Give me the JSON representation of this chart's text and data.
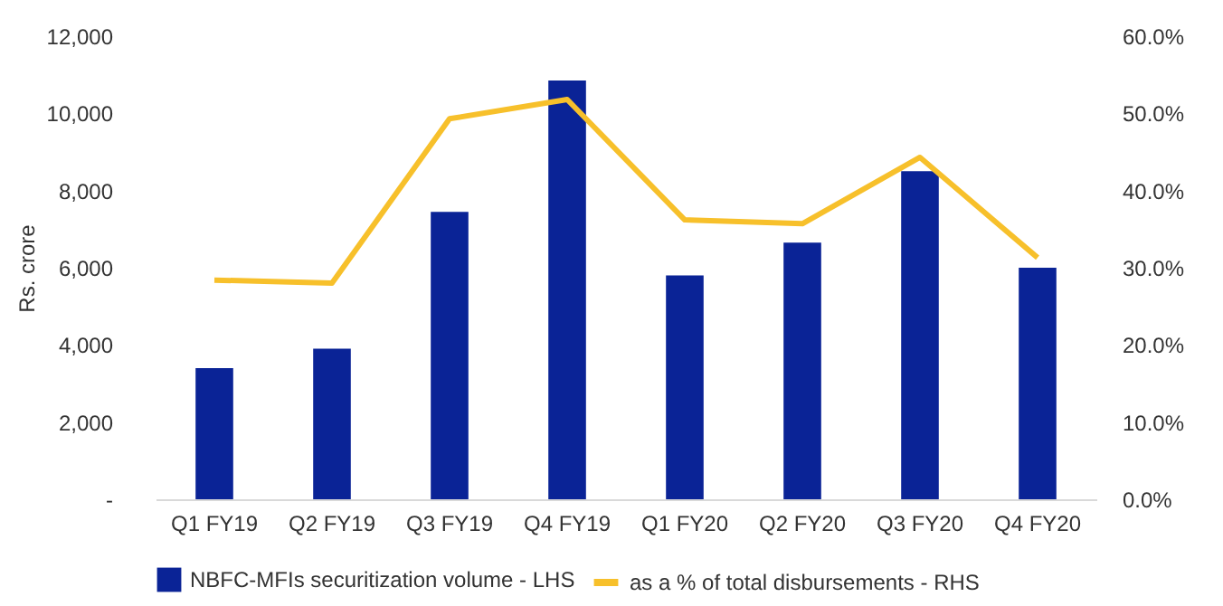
{
  "chart_data": {
    "type": "bar",
    "ylabel": "Rs. crore",
    "categories": [
      "Q1 FY19",
      "Q2 FY19",
      "Q3 FY19",
      "Q4 FY19",
      "Q1 FY20",
      "Q2 FY20",
      "Q3 FY20",
      "Q4 FY20"
    ],
    "series": [
      {
        "name": "NBFC-MFIs securitization volume - LHS",
        "color": "#0a2396",
        "values": [
          3400,
          3900,
          7450,
          10850,
          5800,
          6650,
          8500,
          6000
        ]
      },
      {
        "name": "as a % of total disbursements - RHS",
        "type": "line",
        "axis": "y2",
        "color": "#f7c02b",
        "values": [
          28.4,
          28.0,
          49.3,
          51.8,
          36.2,
          35.7,
          44.3,
          31.3
        ]
      }
    ],
    "ylim": [
      0,
      12000
    ],
    "yticks": [
      {
        "value": 0,
        "label": "-"
      },
      {
        "value": 2000,
        "label": "2,000"
      },
      {
        "value": 4000,
        "label": "4,000"
      },
      {
        "value": 6000,
        "label": "6,000"
      },
      {
        "value": 8000,
        "label": "8,000"
      },
      {
        "value": 10000,
        "label": "10,000"
      },
      {
        "value": 12000,
        "label": "12,000"
      }
    ],
    "y2lim": [
      0,
      60
    ],
    "y2ticks": [
      {
        "value": 0,
        "label": "0.0%"
      },
      {
        "value": 10,
        "label": "10.0%"
      },
      {
        "value": 20,
        "label": "20.0%"
      },
      {
        "value": 30,
        "label": "30.0%"
      },
      {
        "value": 40,
        "label": "40.0%"
      },
      {
        "value": 50,
        "label": "50.0%"
      },
      {
        "value": 60,
        "label": "60.0%"
      }
    ],
    "grid": false,
    "legend": "bottom",
    "marker": "none",
    "line_style": "solid"
  }
}
